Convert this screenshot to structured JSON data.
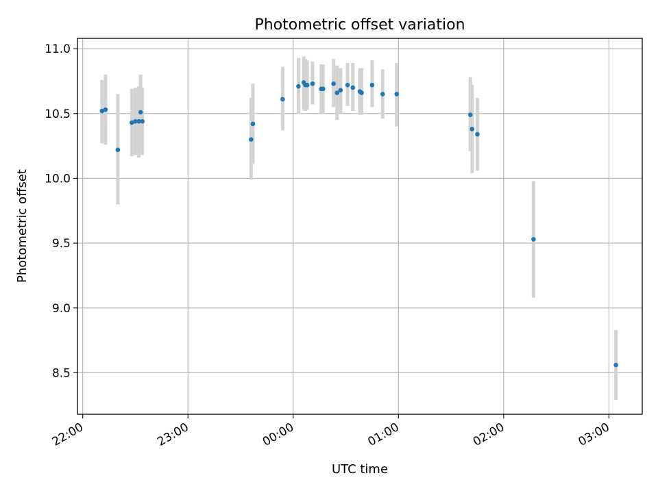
{
  "chart_data": {
    "type": "scatter",
    "title": "Photometric offset variation",
    "xlabel": "UTC time",
    "ylabel": "Photometric offset",
    "x_unit": "UTC hour (hours after 22:00 wrap past midnight)",
    "xlim": [
      "21:57",
      "03:19"
    ],
    "ylim": [
      8.18,
      11.08
    ],
    "x_ticks": [
      "22:00",
      "23:00",
      "00:00",
      "01:00",
      "02:00",
      "03:00"
    ],
    "y_ticks": [
      8.5,
      9.0,
      9.5,
      10.0,
      10.5,
      11.0
    ],
    "y_tick_labels": [
      "8.5",
      "9.0",
      "9.5",
      "10.0",
      "10.5",
      "11.0"
    ],
    "grid": true,
    "marker_color": "#1f77b4",
    "errorbar_color": "#d3d3d3",
    "points": [
      {
        "x": "22:11",
        "y": 10.52,
        "err_low": 10.27,
        "err_high": 10.76
      },
      {
        "x": "22:13",
        "y": 10.53,
        "err_low": 10.26,
        "err_high": 10.8
      },
      {
        "x": "22:20",
        "y": 10.22,
        "err_low": 9.8,
        "err_high": 10.65
      },
      {
        "x": "22:28",
        "y": 10.43,
        "err_low": 10.17,
        "err_high": 10.69
      },
      {
        "x": "22:30",
        "y": 10.44,
        "err_low": 10.18,
        "err_high": 10.7
      },
      {
        "x": "22:32",
        "y": 10.44,
        "err_low": 10.16,
        "err_high": 10.71
      },
      {
        "x": "22:33",
        "y": 10.51,
        "err_low": 10.22,
        "err_high": 10.8
      },
      {
        "x": "22:34",
        "y": 10.44,
        "err_low": 10.18,
        "err_high": 10.7
      },
      {
        "x": "23:36",
        "y": 10.3,
        "err_low": 9.99,
        "err_high": 10.62
      },
      {
        "x": "23:37",
        "y": 10.42,
        "err_low": 10.11,
        "err_high": 10.73
      },
      {
        "x": "23:54",
        "y": 10.61,
        "err_low": 10.37,
        "err_high": 10.86
      },
      {
        "x": "00:03",
        "y": 10.71,
        "err_low": 10.5,
        "err_high": 10.93
      },
      {
        "x": "00:06",
        "y": 10.74,
        "err_low": 10.53,
        "err_high": 10.94
      },
      {
        "x": "00:07",
        "y": 10.72,
        "err_low": 10.52,
        "err_high": 10.92
      },
      {
        "x": "00:08",
        "y": 10.72,
        "err_low": 10.53,
        "err_high": 10.91
      },
      {
        "x": "00:11",
        "y": 10.73,
        "err_low": 10.57,
        "err_high": 10.9
      },
      {
        "x": "00:16",
        "y": 10.69,
        "err_low": 10.5,
        "err_high": 10.88
      },
      {
        "x": "00:17",
        "y": 10.69,
        "err_low": 10.5,
        "err_high": 10.88
      },
      {
        "x": "00:23",
        "y": 10.73,
        "err_low": 10.55,
        "err_high": 10.92
      },
      {
        "x": "00:25",
        "y": 10.66,
        "err_low": 10.45,
        "err_high": 10.87
      },
      {
        "x": "00:27",
        "y": 10.68,
        "err_low": 10.5,
        "err_high": 10.85
      },
      {
        "x": "00:31",
        "y": 10.72,
        "err_low": 10.56,
        "err_high": 10.89
      },
      {
        "x": "00:34",
        "y": 10.7,
        "err_low": 10.52,
        "err_high": 10.89
      },
      {
        "x": "00:38",
        "y": 10.67,
        "err_low": 10.49,
        "err_high": 10.85
      },
      {
        "x": "00:39",
        "y": 10.66,
        "err_low": 10.49,
        "err_high": 10.85
      },
      {
        "x": "00:45",
        "y": 10.72,
        "err_low": 10.55,
        "err_high": 10.91
      },
      {
        "x": "00:51",
        "y": 10.65,
        "err_low": 10.46,
        "err_high": 10.84
      },
      {
        "x": "00:59",
        "y": 10.65,
        "err_low": 10.4,
        "err_high": 10.89
      },
      {
        "x": "01:41",
        "y": 10.49,
        "err_low": 10.21,
        "err_high": 10.78
      },
      {
        "x": "01:42",
        "y": 10.38,
        "err_low": 10.04,
        "err_high": 10.72
      },
      {
        "x": "01:45",
        "y": 10.34,
        "err_low": 10.06,
        "err_high": 10.62
      },
      {
        "x": "02:17",
        "y": 9.53,
        "err_low": 9.08,
        "err_high": 9.98
      },
      {
        "x": "03:04",
        "y": 8.56,
        "err_low": 8.29,
        "err_high": 8.83
      }
    ]
  }
}
